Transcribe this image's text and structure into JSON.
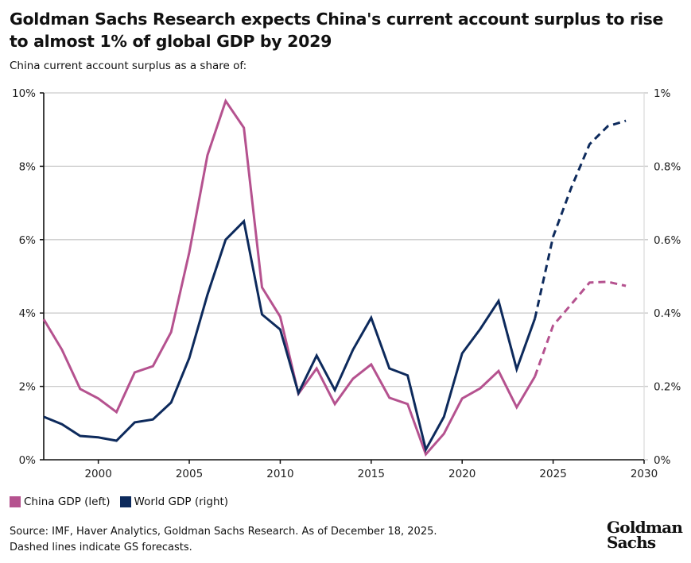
{
  "title": "Goldman Sachs Research expects China's current account surplus to rise to almost 1% of global GDP by 2029",
  "subtitle": "China current account surplus as a share of:",
  "source_line1": "Source: IMF, Haver Analytics, Goldman Sachs Research. As of December 18, 2025.",
  "source_line2": "Dashed lines indicate GS forecasts.",
  "logo": {
    "line1": "Goldman",
    "line2": "Sachs"
  },
  "colors": {
    "china": "#B5528F",
    "world": "#0D2A5C",
    "grid": "#CCCCCC"
  },
  "chart_data": {
    "type": "line",
    "xlim": [
      1997,
      2030
    ],
    "x_ticks": [
      2000,
      2005,
      2010,
      2015,
      2020,
      2025,
      2030
    ],
    "y_left": {
      "lim": [
        0,
        10
      ],
      "ticks": [
        0,
        2,
        4,
        6,
        8,
        10
      ],
      "tick_labels": [
        "0%",
        "2%",
        "4%",
        "6%",
        "8%",
        "10%"
      ]
    },
    "y_right": {
      "lim": [
        0,
        1
      ],
      "ticks": [
        0,
        0.2,
        0.4,
        0.6,
        0.8,
        1
      ],
      "tick_labels": [
        "0%",
        "0.2%",
        "0.4%",
        "0.6%",
        "0.8%",
        "1%"
      ]
    },
    "grid": true,
    "legend_position": "bottom-left",
    "forecast_start": 2024,
    "x": [
      1997,
      1998,
      1999,
      2000,
      2001,
      2002,
      2003,
      2004,
      2005,
      2006,
      2007,
      2008,
      2009,
      2010,
      2011,
      2012,
      2013,
      2014,
      2015,
      2016,
      2017,
      2018,
      2019,
      2020,
      2021,
      2022,
      2023,
      2024,
      2025,
      2026,
      2027,
      2028,
      2029
    ],
    "series": [
      {
        "name": "China GDP (left)",
        "axis": "left",
        "color": "#B5528F",
        "values": [
          3.83,
          3.0,
          1.93,
          1.67,
          1.3,
          2.38,
          2.55,
          3.48,
          5.65,
          8.3,
          9.78,
          9.05,
          4.7,
          3.9,
          1.8,
          2.49,
          1.52,
          2.21,
          2.6,
          1.69,
          1.52,
          0.15,
          0.71,
          1.67,
          1.95,
          2.42,
          1.43,
          2.27,
          3.66,
          4.24,
          4.83,
          4.85,
          4.74
        ]
      },
      {
        "name": "World GDP (right)",
        "axis": "right",
        "color": "#0D2A5C",
        "values": [
          0.117,
          0.097,
          0.065,
          0.061,
          0.052,
          0.102,
          0.11,
          0.156,
          0.277,
          0.45,
          0.6,
          0.65,
          0.396,
          0.355,
          0.182,
          0.284,
          0.19,
          0.3,
          0.387,
          0.249,
          0.23,
          0.028,
          0.117,
          0.29,
          0.357,
          0.433,
          0.247,
          0.385,
          0.608,
          0.742,
          0.86,
          0.909,
          0.924
        ]
      }
    ]
  }
}
